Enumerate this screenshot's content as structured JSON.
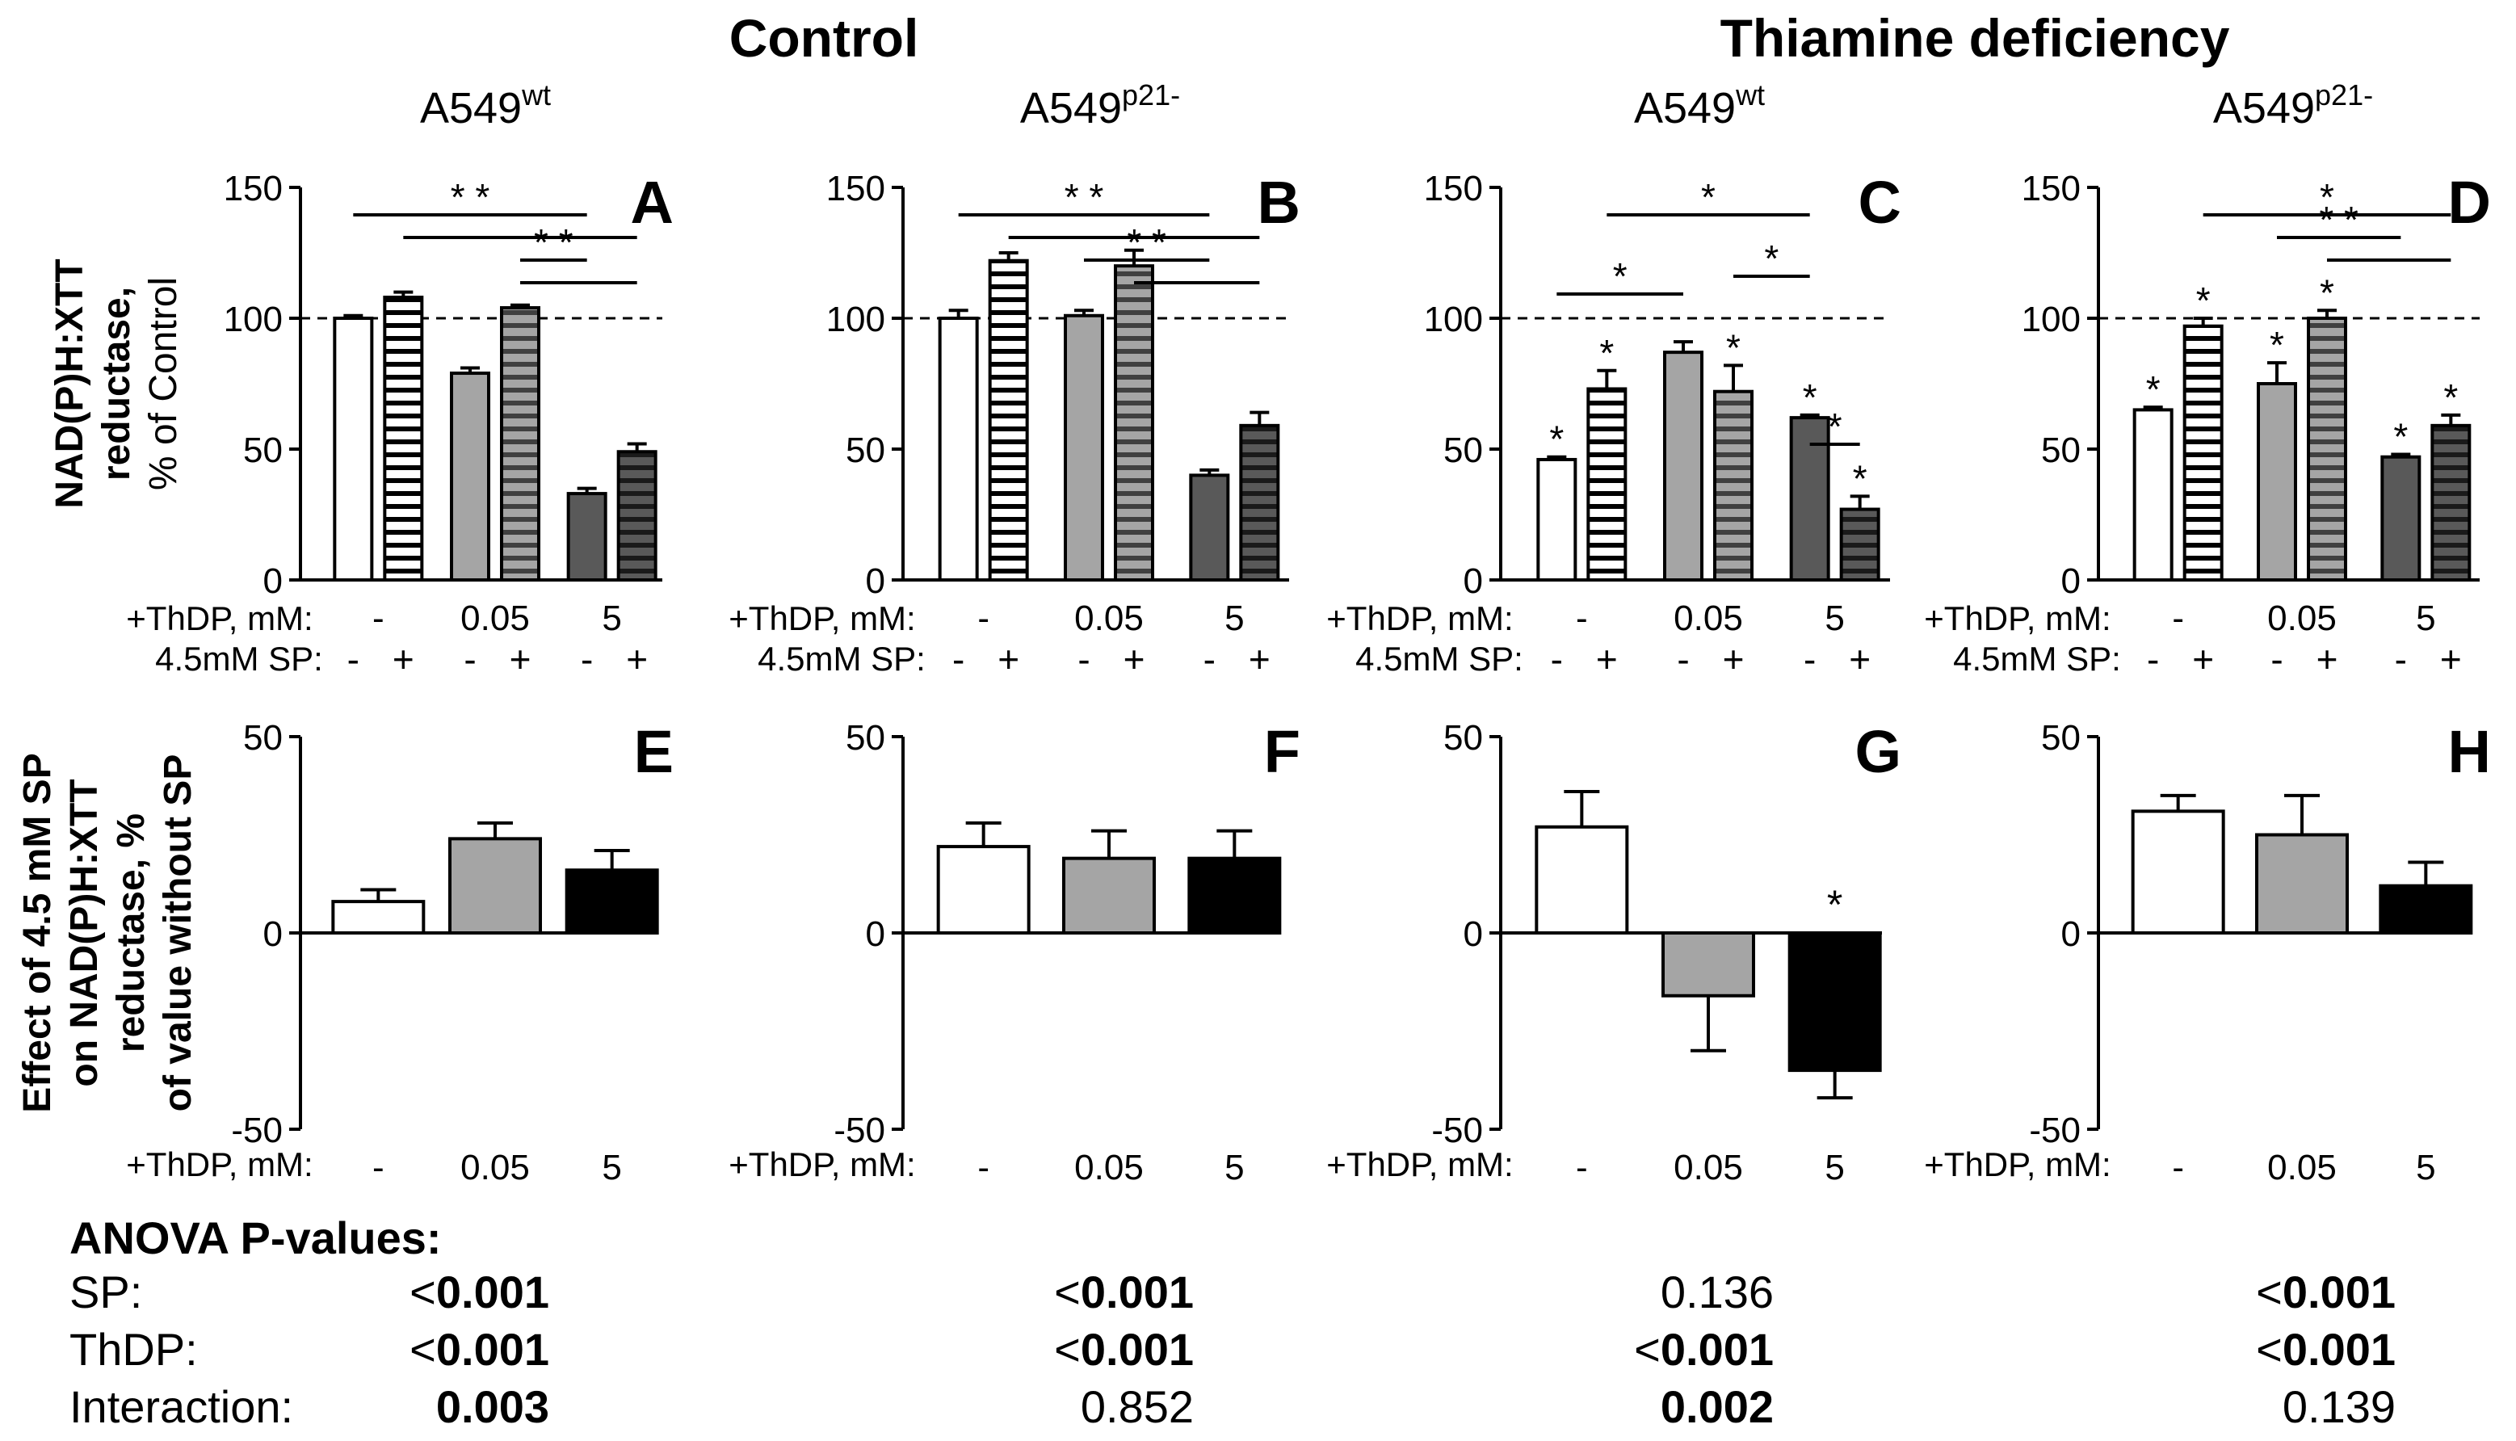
{
  "group_titles": [
    "Control",
    "Thiamine deficiency"
  ],
  "row1_ylabel": [
    "NAD(P)H:XTT",
    "reductase,",
    "% of Control"
  ],
  "row2_ylabel": [
    "Effect of 4.5 mM SP",
    "on NAD(P)H:XTT",
    "reductase, %",
    "of value without SP"
  ],
  "x_row_thdp_label": "+ThDP, mM:",
  "x_row_sp_label": "4.5mM SP:",
  "thdp_ticks": [
    "-",
    "0.05",
    "5"
  ],
  "sp_ticks": [
    "-",
    "+"
  ],
  "significance_mark_single": "*",
  "significance_mark_double": "* *",
  "colors": {
    "white": "#ffffff",
    "grey": "#a5a5a5",
    "dark": "#595959",
    "black": "#000000"
  },
  "chart_data": [
    {
      "panel": "A",
      "cell": "A549",
      "cell_sup": "wt",
      "type": "bar",
      "ylim": [
        0,
        150
      ],
      "yticks": [
        0,
        50,
        100,
        150
      ],
      "reference_line": 100,
      "categories": [
        "-",
        "0.05",
        "5"
      ],
      "series": [
        {
          "name": "SP -",
          "values": [
            100,
            79,
            33
          ],
          "errors": [
            1,
            2,
            2
          ]
        },
        {
          "name": "SP +",
          "values": [
            108,
            104,
            49
          ],
          "errors": [
            2,
            1,
            3
          ]
        }
      ],
      "bar_stars": [],
      "brackets": [
        {
          "from": [
            0,
            0
          ],
          "to": [
            2,
            0
          ],
          "mark": "* *"
        },
        {
          "from": [
            0,
            1
          ],
          "to": [
            2,
            1
          ],
          "mark": ""
        },
        {
          "from": [
            1,
            1
          ],
          "to": [
            2,
            0
          ],
          "mark": "* *"
        },
        {
          "from": [
            1,
            1
          ],
          "to": [
            2,
            1
          ],
          "mark": ""
        }
      ]
    },
    {
      "panel": "B",
      "cell": "A549",
      "cell_sup": "p21-",
      "type": "bar",
      "ylim": [
        0,
        150
      ],
      "yticks": [
        0,
        50,
        100,
        150
      ],
      "reference_line": 100,
      "categories": [
        "-",
        "0.05",
        "5"
      ],
      "series": [
        {
          "name": "SP -",
          "values": [
            100,
            101,
            40
          ],
          "errors": [
            3,
            2,
            2
          ]
        },
        {
          "name": "SP +",
          "values": [
            122,
            120,
            59
          ],
          "errors": [
            3,
            6,
            5
          ]
        }
      ],
      "bar_stars": [],
      "brackets": [
        {
          "from": [
            0,
            0
          ],
          "to": [
            2,
            0
          ],
          "mark": "* *"
        },
        {
          "from": [
            0,
            1
          ],
          "to": [
            2,
            1
          ],
          "mark": ""
        },
        {
          "from": [
            1,
            0
          ],
          "to": [
            2,
            0
          ],
          "mark": "* *"
        },
        {
          "from": [
            1,
            1
          ],
          "to": [
            2,
            1
          ],
          "mark": ""
        }
      ]
    },
    {
      "panel": "C",
      "cell": "A549",
      "cell_sup": "wt",
      "type": "bar",
      "ylim": [
        0,
        150
      ],
      "yticks": [
        0,
        50,
        100,
        150
      ],
      "reference_line": 100,
      "categories": [
        "-",
        "0.05",
        "5"
      ],
      "series": [
        {
          "name": "SP -",
          "values": [
            46,
            87,
            62
          ],
          "errors": [
            1,
            4,
            1
          ]
        },
        {
          "name": "SP +",
          "values": [
            73,
            72,
            27
          ],
          "errors": [
            7,
            10,
            5
          ]
        }
      ],
      "bar_stars": [
        [
          0,
          0
        ],
        [
          0,
          1
        ],
        [
          1,
          1
        ],
        [
          2,
          0
        ],
        [
          2,
          1
        ]
      ],
      "brackets": [
        {
          "from": [
            0,
            1
          ],
          "to": [
            2,
            0
          ],
          "mark": "*"
        },
        {
          "from": [
            0,
            0
          ],
          "to": [
            1,
            0
          ],
          "mark": "*"
        },
        {
          "from": [
            1,
            1
          ],
          "to": [
            2,
            0
          ],
          "mark": "*"
        },
        {
          "from": [
            2,
            0
          ],
          "to": [
            2,
            1
          ],
          "mark": "*"
        }
      ]
    },
    {
      "panel": "D",
      "cell": "A549",
      "cell_sup": "p21-",
      "type": "bar",
      "ylim": [
        0,
        150
      ],
      "yticks": [
        0,
        50,
        100,
        150
      ],
      "reference_line": 100,
      "categories": [
        "-",
        "0.05",
        "5"
      ],
      "series": [
        {
          "name": "SP -",
          "values": [
            65,
            75,
            47
          ],
          "errors": [
            1,
            8,
            1
          ]
        },
        {
          "name": "SP +",
          "values": [
            97,
            100,
            59
          ],
          "errors": [
            3,
            3,
            4
          ]
        }
      ],
      "bar_stars": [
        [
          0,
          0
        ],
        [
          0,
          1
        ],
        [
          1,
          0
        ],
        [
          1,
          1
        ],
        [
          2,
          0
        ],
        [
          2,
          1
        ]
      ],
      "brackets": [
        {
          "from": [
            0,
            1
          ],
          "to": [
            2,
            1
          ],
          "mark": "*"
        },
        {
          "from": [
            1,
            0
          ],
          "to": [
            2,
            0
          ],
          "mark": "* *"
        },
        {
          "from": [
            1,
            1
          ],
          "to": [
            2,
            1
          ],
          "mark": ""
        }
      ]
    },
    {
      "panel": "E",
      "type": "bar",
      "ylim": [
        -50,
        50
      ],
      "yticks": [
        -50,
        0,
        50
      ],
      "categories": [
        "-",
        "0.05",
        "5"
      ],
      "values": [
        8,
        24,
        16
      ],
      "errors": [
        3,
        4,
        5
      ],
      "bar_stars": []
    },
    {
      "panel": "F",
      "type": "bar",
      "ylim": [
        -50,
        50
      ],
      "yticks": [
        -50,
        0,
        50
      ],
      "categories": [
        "-",
        "0.05",
        "5"
      ],
      "values": [
        22,
        19,
        19
      ],
      "errors": [
        6,
        7,
        7
      ],
      "bar_stars": []
    },
    {
      "panel": "G",
      "type": "bar",
      "ylim": [
        -50,
        50
      ],
      "yticks": [
        -50,
        0,
        50
      ],
      "categories": [
        "-",
        "0.05",
        "5"
      ],
      "values": [
        27,
        -16,
        -35
      ],
      "errors": [
        9,
        14,
        7
      ],
      "bar_stars": [
        2
      ]
    },
    {
      "panel": "H",
      "type": "bar",
      "ylim": [
        -50,
        50
      ],
      "yticks": [
        -50,
        0,
        50
      ],
      "categories": [
        "-",
        "0.05",
        "5"
      ],
      "values": [
        31,
        25,
        12
      ],
      "errors": [
        4,
        10,
        6
      ],
      "bar_stars": []
    }
  ],
  "anova": {
    "title": "ANOVA P-values:",
    "rows": [
      {
        "label": "SP:",
        "values": [
          {
            "prefix": "<",
            "text": "0.001",
            "bold": true
          },
          {
            "prefix": "<",
            "text": "0.001",
            "bold": true
          },
          {
            "prefix": "",
            "text": "0.136",
            "bold": false
          },
          {
            "prefix": "<",
            "text": "0.001",
            "bold": true
          }
        ]
      },
      {
        "label": "ThDP:",
        "values": [
          {
            "prefix": "<",
            "text": "0.001",
            "bold": true
          },
          {
            "prefix": "<",
            "text": "0.001",
            "bold": true
          },
          {
            "prefix": "<",
            "text": "0.001",
            "bold": true
          },
          {
            "prefix": "<",
            "text": "0.001",
            "bold": true
          }
        ]
      },
      {
        "label": "Interaction:",
        "values": [
          {
            "prefix": "",
            "text": "0.003",
            "bold": true
          },
          {
            "prefix": "",
            "text": "0.852",
            "bold": false
          },
          {
            "prefix": "",
            "text": "0.002",
            "bold": true
          },
          {
            "prefix": "",
            "text": "0.139",
            "bold": false
          }
        ]
      }
    ]
  }
}
